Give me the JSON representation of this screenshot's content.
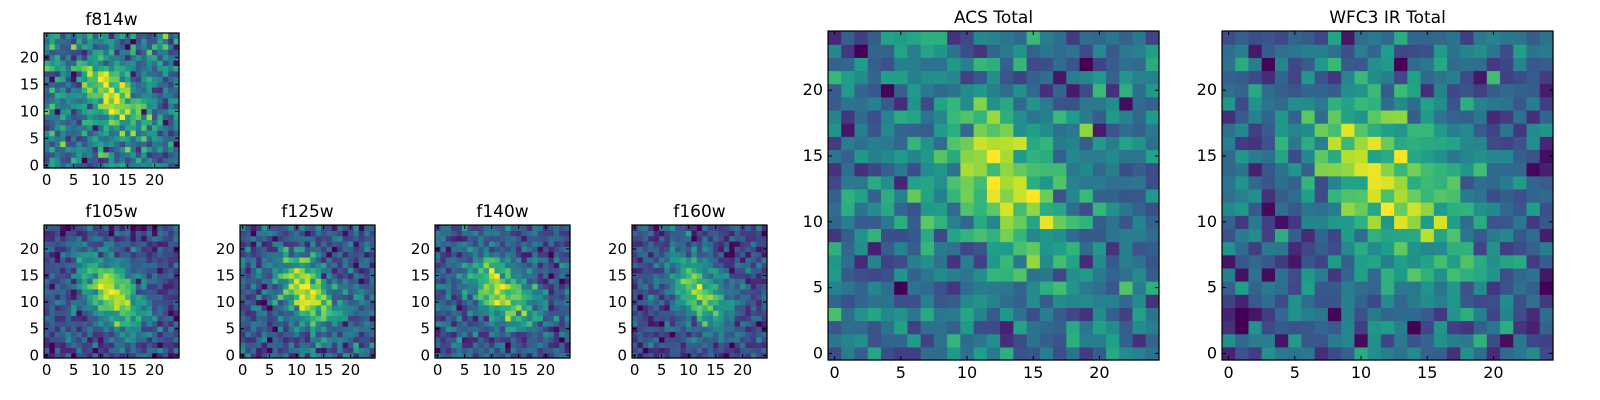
{
  "chart_data": [
    {
      "type": "heatmap",
      "title": "f814w",
      "xlabel": "",
      "ylabel": "",
      "x_ticks": [
        "0",
        "5",
        "10",
        "15",
        "20"
      ],
      "y_ticks": [
        "0",
        "5",
        "10",
        "15",
        "20"
      ],
      "xlim": [
        0,
        25
      ],
      "ylim": [
        0,
        25
      ],
      "grid": false,
      "colormap": "viridis",
      "source_center": [
        12,
        13
      ],
      "source_sigma": [
        2.5,
        4.5
      ],
      "source_angle_deg": -35,
      "noise": 0.28,
      "seed": 11
    },
    {
      "type": "heatmap",
      "title": "f105w",
      "xlabel": "",
      "ylabel": "",
      "x_ticks": [
        "0",
        "5",
        "10",
        "15",
        "20"
      ],
      "y_ticks": [
        "0",
        "5",
        "10",
        "15",
        "20"
      ],
      "xlim": [
        0,
        25
      ],
      "ylim": [
        0,
        25
      ],
      "grid": false,
      "colormap": "viridis",
      "source_center": [
        12,
        12
      ],
      "source_sigma": [
        3.2,
        5.2
      ],
      "source_angle_deg": -35,
      "noise": 0.16,
      "seed": 23
    },
    {
      "type": "heatmap",
      "title": "f125w",
      "xlabel": "",
      "ylabel": "",
      "x_ticks": [
        "0",
        "5",
        "10",
        "15",
        "20"
      ],
      "y_ticks": [
        "0",
        "5",
        "10",
        "15",
        "20"
      ],
      "xlim": [
        0,
        25
      ],
      "ylim": [
        0,
        25
      ],
      "grid": false,
      "colormap": "viridis",
      "source_center": [
        12,
        12
      ],
      "source_sigma": [
        3.0,
        5.5
      ],
      "source_angle_deg": -30,
      "noise": 0.22,
      "seed": 37
    },
    {
      "type": "heatmap",
      "title": "f140w",
      "xlabel": "",
      "ylabel": "",
      "x_ticks": [
        "0",
        "5",
        "10",
        "15",
        "20"
      ],
      "y_ticks": [
        "0",
        "5",
        "10",
        "15",
        "20"
      ],
      "xlim": [
        0,
        25
      ],
      "ylim": [
        0,
        25
      ],
      "grid": false,
      "colormap": "viridis",
      "source_center": [
        12,
        12
      ],
      "source_sigma": [
        3.0,
        5.0
      ],
      "source_angle_deg": -40,
      "noise": 0.2,
      "seed": 41
    },
    {
      "type": "heatmap",
      "title": "f160w",
      "xlabel": "",
      "ylabel": "",
      "x_ticks": [
        "0",
        "5",
        "10",
        "15",
        "20"
      ],
      "y_ticks": [
        "0",
        "5",
        "10",
        "15",
        "20"
      ],
      "xlim": [
        0,
        25
      ],
      "ylim": [
        0,
        25
      ],
      "grid": false,
      "colormap": "viridis",
      "source_center": [
        12,
        12
      ],
      "source_sigma": [
        3.0,
        5.5
      ],
      "source_angle_deg": -30,
      "noise": 0.2,
      "seed": 53
    },
    {
      "type": "heatmap",
      "title": "ACS Total",
      "xlabel": "",
      "ylabel": "",
      "x_ticks": [
        "0",
        "5",
        "10",
        "15",
        "20"
      ],
      "y_ticks": [
        "0",
        "5",
        "10",
        "15",
        "20"
      ],
      "xlim": [
        0,
        25
      ],
      "ylim": [
        0,
        25
      ],
      "grid": false,
      "colormap": "viridis",
      "source_center": [
        12.5,
        13.5
      ],
      "source_sigma": [
        2.6,
        4.6
      ],
      "source_angle_deg": -30,
      "noise": 0.26,
      "seed": 67
    },
    {
      "type": "heatmap",
      "title": "WFC3 IR Total",
      "xlabel": "",
      "ylabel": "",
      "x_ticks": [
        "0",
        "5",
        "10",
        "15",
        "20"
      ],
      "y_ticks": [
        "0",
        "5",
        "10",
        "15",
        "20"
      ],
      "xlim": [
        0,
        25
      ],
      "ylim": [
        0,
        25
      ],
      "grid": false,
      "colormap": "viridis",
      "source_center": [
        12,
        13
      ],
      "source_sigma": [
        3.2,
        5.4
      ],
      "source_angle_deg": -30,
      "noise": 0.24,
      "seed": 79
    }
  ]
}
